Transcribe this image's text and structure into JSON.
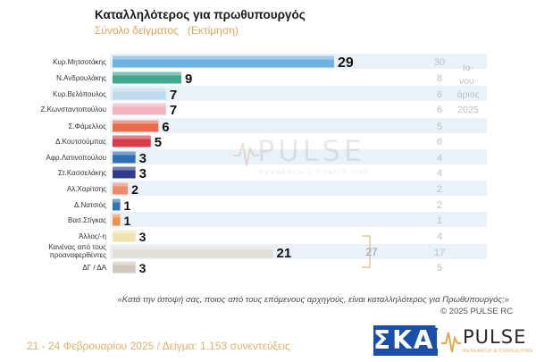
{
  "header": {
    "title": "Καταλληλότερος για πρωθυπουργός",
    "subtitle_a": "Σύνολο δείγματος",
    "subtitle_b": "(Εκτίμηση)"
  },
  "chart_data": {
    "type": "bar",
    "orientation": "horizontal",
    "title": "Καταλληλότερος για πρωθυπουργός",
    "subtitle": "Σύνολο δείγματος (Εκτίμηση)",
    "categories": [
      "Κυρ.Μητσοτάκης",
      "Ν.Ανδρουλάκης",
      "Κυρ.Βελόπουλος",
      "Ζ.Κωνσταντοπούλου",
      "Σ.Φάμελλος",
      "Δ.Κουτσούμπας",
      "Αφρ.Λατινοπούλου",
      "Στ.Κασσελάκης",
      "Αλ.Χαρίτσης",
      "Δ.Νατσιός",
      "Βασ.Στίγκας",
      "Άλλος/-η",
      "Κανένας από τους προαναφερθέντες",
      "ΔΓ / ΔΑ"
    ],
    "series": [
      {
        "values": [
          29,
          9,
          7,
          7,
          6,
          5,
          3,
          3,
          2,
          1,
          1,
          3,
          21,
          3
        ]
      },
      {
        "name": "Ια-νου-άριος 2025",
        "values": [
          30,
          8,
          6,
          6,
          5,
          6,
          4,
          4,
          2,
          2,
          1,
          4,
          17,
          5
        ]
      }
    ],
    "bracket_label": "27",
    "bar_colors": [
      "#6fb3e3",
      "#3fa88e",
      "#bcd9f0",
      "#f2b3c0",
      "#ea6a4e",
      "#d83a4a",
      "#2e6fb5",
      "#2f3c8e",
      "#ee8a6a",
      "#2f76b5",
      "#f09050",
      "#efe2b0",
      "#e2ddd5",
      "#cfc9bd"
    ],
    "xlim": [
      0,
      30
    ],
    "grid": false,
    "legend": "none"
  },
  "side_legend": [
    "Ια-",
    "νου-",
    "άριος",
    "2025"
  ],
  "notes": {
    "question": "«Κατά την άποψή σας, ποιος από τους επόμενους αρχηγούς, είναι καταλληλότερος για Πρωθυπουργός;»",
    "copyright": "© 2025 PULSE RC"
  },
  "footer": {
    "text": "21 - 24 Φεβρουαρίου 2025  /  Δείγμα:  1.153 συνεντεύξεις"
  },
  "logos": {
    "skai": "ΣΚΑΪ",
    "pulse": "PULSE",
    "pulse_tag": "RESEARCH & CONSULTING"
  },
  "colors": {
    "row_band": "#eaf1f9",
    "prev_value": "#b7c0c8",
    "accent": "#e3b06a"
  }
}
